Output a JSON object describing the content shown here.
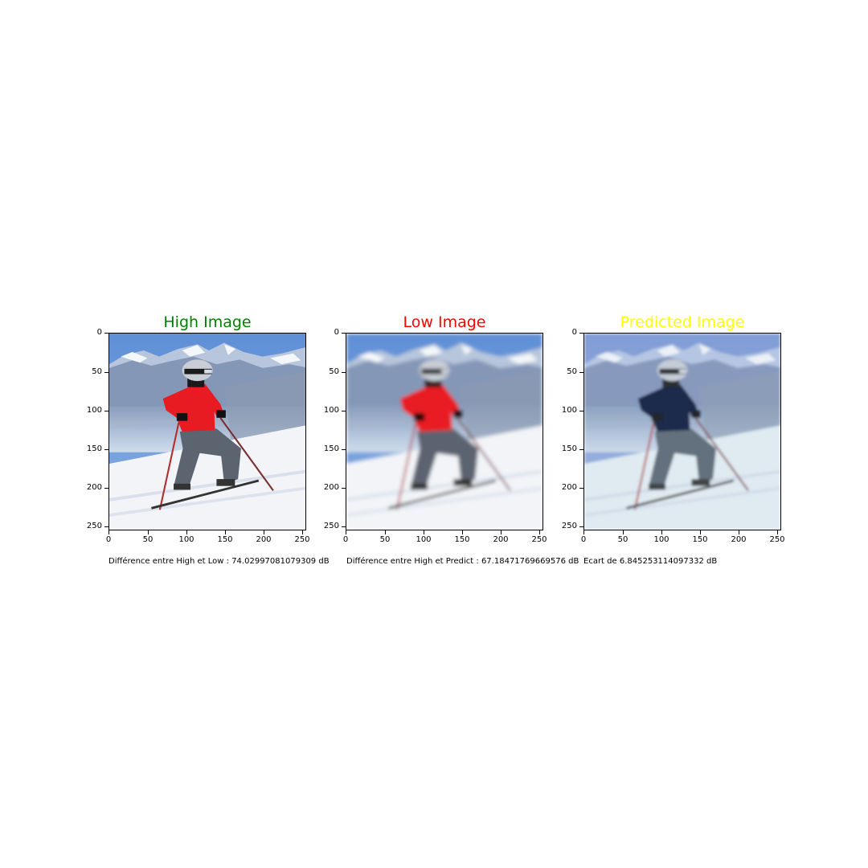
{
  "panels": [
    {
      "title": "High Image",
      "title_color": "#008000",
      "jacket_color": "#e81a22",
      "blur": 0,
      "tint": "none",
      "caption": "Différence entre High et Low : 74.02997081079309 dB"
    },
    {
      "title": "Low Image",
      "title_color": "#ff0000",
      "jacket_color": "#e81a22",
      "blur": 2.6,
      "tint": "none",
      "caption": "Différence entre High et Predict : 67.18471769669576 dB"
    },
    {
      "title": "Predicted Image",
      "title_color": "#ffff00",
      "jacket_color": "#0b1438",
      "blur": 1.6,
      "tint": "cool",
      "caption": "Ecart de 6.845253114097332 dB"
    }
  ],
  "axis": {
    "y_ticks": [
      "0",
      "50",
      "100",
      "150",
      "200",
      "250"
    ],
    "x_ticks": [
      "0",
      "50",
      "100",
      "150",
      "200",
      "250"
    ],
    "range": [
      0,
      256
    ]
  },
  "image_subject": "skier on snowy slope in front of mountains"
}
